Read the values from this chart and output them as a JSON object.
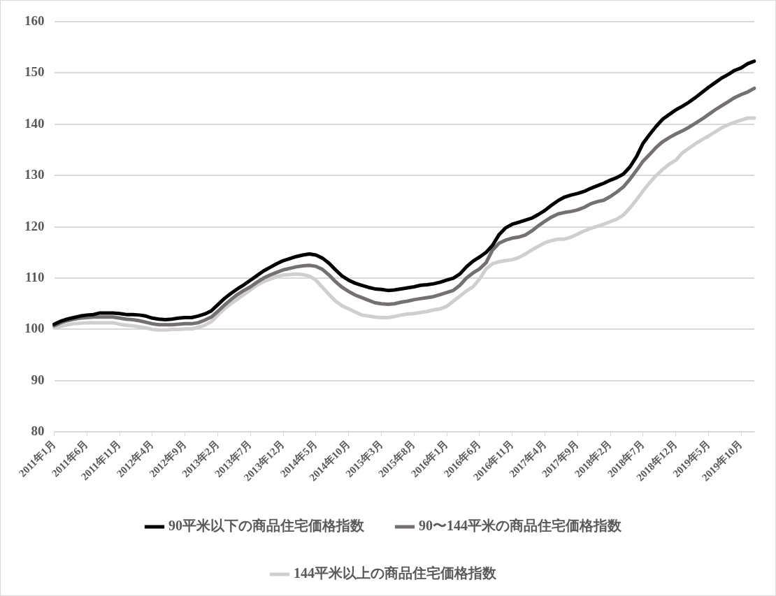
{
  "chart_data": {
    "type": "line",
    "categories": [
      "2011年1月",
      null,
      null,
      null,
      null,
      "2011年6月",
      null,
      null,
      null,
      null,
      "2011年11月",
      null,
      null,
      null,
      null,
      "2012年4月",
      null,
      null,
      null,
      null,
      "2012年9月",
      null,
      null,
      null,
      null,
      "2013年2月",
      null,
      null,
      null,
      null,
      "2013年7月",
      null,
      null,
      null,
      null,
      "2013年12月",
      null,
      null,
      null,
      null,
      "2014年5月",
      null,
      null,
      null,
      null,
      "2014年10月",
      null,
      null,
      null,
      null,
      "2015年3月",
      null,
      null,
      null,
      null,
      "2015年8月",
      null,
      null,
      null,
      null,
      "2016年1月",
      null,
      null,
      null,
      null,
      "2016年6月",
      null,
      null,
      null,
      null,
      "2016年11月",
      null,
      null,
      null,
      null,
      "2017年4月",
      null,
      null,
      null,
      null,
      "2017年9月",
      null,
      null,
      null,
      null,
      "2018年2月",
      null,
      null,
      null,
      null,
      "2018年7月",
      null,
      null,
      null,
      null,
      "2018年12月",
      null,
      null,
      null,
      null,
      "2019年5月",
      null,
      null,
      null,
      null,
      "2019年10月",
      null,
      null
    ],
    "series": [
      {
        "name": "90平米以下の商品住宅価格指数",
        "color": "#000000",
        "values": [
          101.0,
          101.6,
          102.0,
          102.3,
          102.6,
          102.8,
          102.9,
          103.2,
          103.2,
          103.2,
          103.1,
          102.9,
          102.9,
          102.8,
          102.6,
          102.2,
          102.0,
          101.9,
          102.0,
          102.2,
          102.3,
          102.3,
          102.6,
          103.0,
          103.6,
          104.8,
          106.0,
          107.0,
          107.9,
          108.7,
          109.6,
          110.5,
          111.4,
          112.1,
          112.8,
          113.4,
          113.8,
          114.2,
          114.5,
          114.7,
          114.5,
          113.9,
          112.9,
          111.6,
          110.4,
          109.6,
          109.0,
          108.6,
          108.2,
          107.9,
          107.8,
          107.6,
          107.7,
          107.9,
          108.1,
          108.3,
          108.6,
          108.7,
          108.9,
          109.2,
          109.6,
          110.0,
          110.8,
          112.2,
          113.3,
          114.1,
          115.0,
          116.4,
          118.5,
          119.8,
          120.5,
          120.9,
          121.3,
          121.7,
          122.4,
          123.2,
          124.2,
          125.1,
          125.8,
          126.2,
          126.5,
          126.9,
          127.5,
          128.0,
          128.5,
          129.1,
          129.6,
          130.3,
          131.7,
          133.7,
          136.3,
          138.0,
          139.6,
          141.0,
          141.9,
          142.8,
          143.5,
          144.3,
          145.2,
          146.2,
          147.2,
          148.1,
          149.0,
          149.7,
          150.5,
          151.0,
          151.8,
          152.3
        ]
      },
      {
        "name": "90〜144平米の商品住宅価格指数",
        "color": "#767171",
        "values": [
          100.7,
          101.3,
          101.7,
          102.0,
          102.2,
          102.3,
          102.4,
          102.4,
          102.4,
          102.4,
          102.2,
          102.0,
          101.9,
          101.7,
          101.4,
          101.1,
          100.9,
          100.9,
          100.9,
          101.0,
          101.1,
          101.1,
          101.3,
          101.8,
          102.4,
          103.5,
          104.7,
          105.8,
          106.8,
          107.6,
          108.3,
          109.2,
          110.0,
          110.6,
          111.1,
          111.6,
          111.9,
          112.2,
          112.4,
          112.5,
          112.3,
          111.7,
          110.6,
          109.3,
          108.2,
          107.4,
          106.7,
          106.2,
          105.7,
          105.2,
          105.0,
          104.9,
          105.0,
          105.3,
          105.5,
          105.8,
          106.0,
          106.2,
          106.4,
          106.8,
          107.2,
          107.6,
          108.6,
          110.0,
          111.0,
          111.8,
          113.0,
          115.5,
          116.8,
          117.4,
          117.8,
          118.0,
          118.4,
          119.2,
          120.2,
          121.1,
          121.9,
          122.5,
          122.8,
          123.0,
          123.3,
          123.8,
          124.5,
          124.9,
          125.2,
          125.9,
          126.8,
          127.8,
          129.3,
          131.0,
          132.8,
          134.1,
          135.5,
          136.6,
          137.4,
          138.1,
          138.7,
          139.4,
          140.2,
          141.0,
          141.9,
          142.8,
          143.6,
          144.4,
          145.2,
          145.8,
          146.3,
          147.0
        ]
      },
      {
        "name": "144平米以上の商品住宅価格指数",
        "color": "#d0cece",
        "values": [
          100.3,
          100.6,
          100.9,
          101.1,
          101.2,
          101.3,
          101.3,
          101.3,
          101.3,
          101.3,
          101.0,
          100.8,
          100.7,
          100.5,
          100.3,
          100.0,
          99.9,
          99.9,
          100.0,
          100.0,
          100.1,
          100.1,
          100.4,
          100.8,
          101.5,
          102.8,
          104.0,
          105.0,
          105.9,
          106.8,
          107.7,
          108.6,
          109.3,
          109.8,
          110.3,
          110.6,
          110.7,
          110.8,
          110.7,
          110.4,
          109.6,
          108.2,
          106.8,
          105.5,
          104.6,
          104.0,
          103.4,
          102.8,
          102.6,
          102.4,
          102.3,
          102.3,
          102.5,
          102.8,
          103.0,
          103.1,
          103.3,
          103.5,
          103.8,
          104.0,
          104.5,
          105.5,
          106.5,
          107.5,
          108.3,
          109.8,
          111.8,
          112.8,
          113.2,
          113.4,
          113.6,
          114.0,
          114.7,
          115.5,
          116.2,
          116.9,
          117.3,
          117.6,
          117.6,
          118.0,
          118.6,
          119.2,
          119.7,
          120.1,
          120.5,
          121.0,
          121.5,
          122.3,
          123.7,
          125.3,
          127.0,
          128.6,
          130.0,
          131.2,
          132.2,
          133.0,
          134.4,
          135.3,
          136.2,
          137.0,
          137.7,
          138.5,
          139.3,
          139.9,
          140.4,
          140.8,
          141.2,
          141.2
        ]
      }
    ],
    "ylim": [
      80,
      160
    ],
    "yticks": [
      80,
      90,
      100,
      110,
      120,
      130,
      140,
      150,
      160
    ],
    "grid": "y",
    "legend": "bottom",
    "marker": "none",
    "line_style": "solid"
  }
}
